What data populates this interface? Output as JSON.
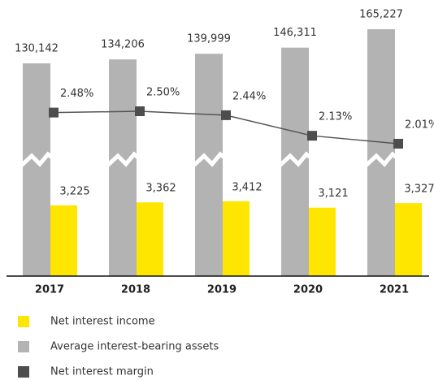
{
  "chart_data": {
    "type": "bar_line",
    "categories": [
      "2017",
      "2018",
      "2019",
      "2020",
      "2021"
    ],
    "series": [
      {
        "name": "Net interest income",
        "color": "#ffe600",
        "values": [
          3225,
          3362,
          3412,
          3121,
          3327
        ],
        "value_labels": [
          "3,225",
          "3,362",
          "3,412",
          "3,121",
          "3,327"
        ]
      },
      {
        "name": "Average interest-bearing assets",
        "color": "#b3b3b3",
        "values": [
          130142,
          134206,
          139999,
          146311,
          165227
        ],
        "value_labels": [
          "130,142",
          "134,206",
          "139,999",
          "146,311",
          "165,227"
        ],
        "broken_axis": true
      },
      {
        "name": "Net interest margin",
        "color": "#4d4d4d",
        "type": "line",
        "values": [
          2.48,
          2.5,
          2.44,
          2.13,
          2.01
        ],
        "value_labels": [
          "2.48%",
          "2.50%",
          "2.44%",
          "2.13%",
          "2.01%"
        ]
      }
    ],
    "legend": "bottom-left"
  }
}
